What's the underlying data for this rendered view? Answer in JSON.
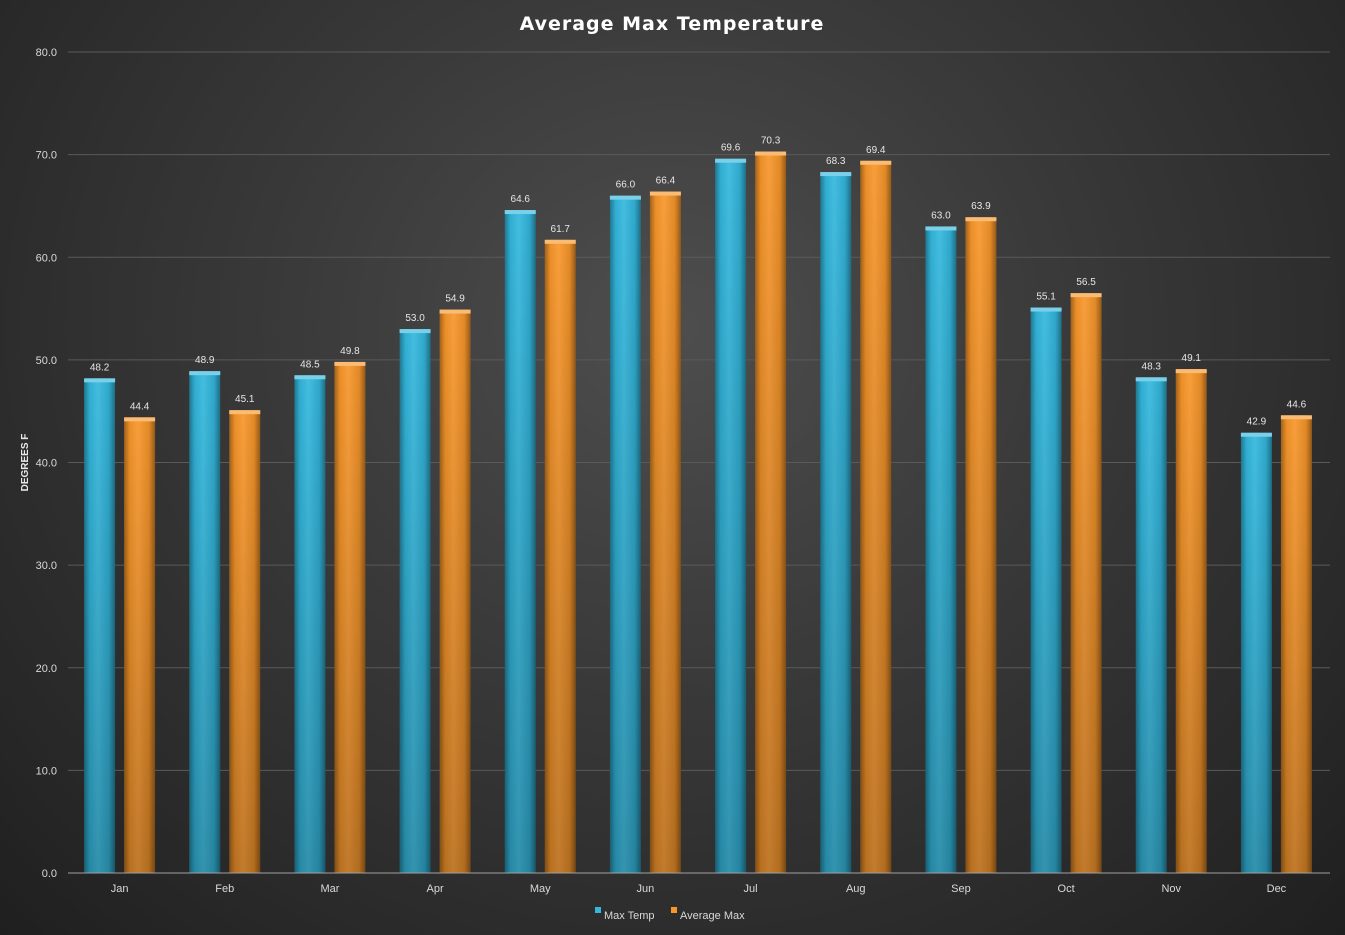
{
  "chart_data": {
    "type": "bar",
    "title": "Average Max Temperature",
    "ylabel": "DEGREES F",
    "xlabel": "",
    "ylim": [
      0,
      80
    ],
    "ytick_step": 10,
    "ytick_labels": [
      "0.0",
      "10.0",
      "20.0",
      "30.0",
      "40.0",
      "50.0",
      "60.0",
      "70.0",
      "80.0"
    ],
    "grid": true,
    "legend_position": "bottom",
    "categories": [
      "Jan",
      "Feb",
      "Mar",
      "Apr",
      "May",
      "Jun",
      "Jul",
      "Aug",
      "Sep",
      "Oct",
      "Nov",
      "Dec"
    ],
    "series": [
      {
        "name": "Max Temp",
        "color": "#33b7dd",
        "values": [
          48.2,
          48.9,
          48.5,
          53.0,
          64.6,
          66.0,
          69.6,
          68.3,
          63.0,
          55.1,
          48.3,
          42.9
        ],
        "labels": [
          "48.2",
          "48.9",
          "48.5",
          "53.0",
          "64.6",
          "66.0",
          "69.6",
          "68.3",
          "63.0",
          "55.1",
          "48.3",
          "42.9"
        ]
      },
      {
        "name": "Average Max",
        "color": "#f7962a",
        "values": [
          44.4,
          45.1,
          49.8,
          54.9,
          61.7,
          66.4,
          70.3,
          69.4,
          63.9,
          56.5,
          49.1,
          44.6
        ],
        "labels": [
          "44.4",
          "45.1",
          "49.8",
          "54.9",
          "61.7",
          "66.4",
          "70.3",
          "69.4",
          "63.9",
          "56.5",
          "49.1",
          "44.6"
        ]
      }
    ]
  }
}
